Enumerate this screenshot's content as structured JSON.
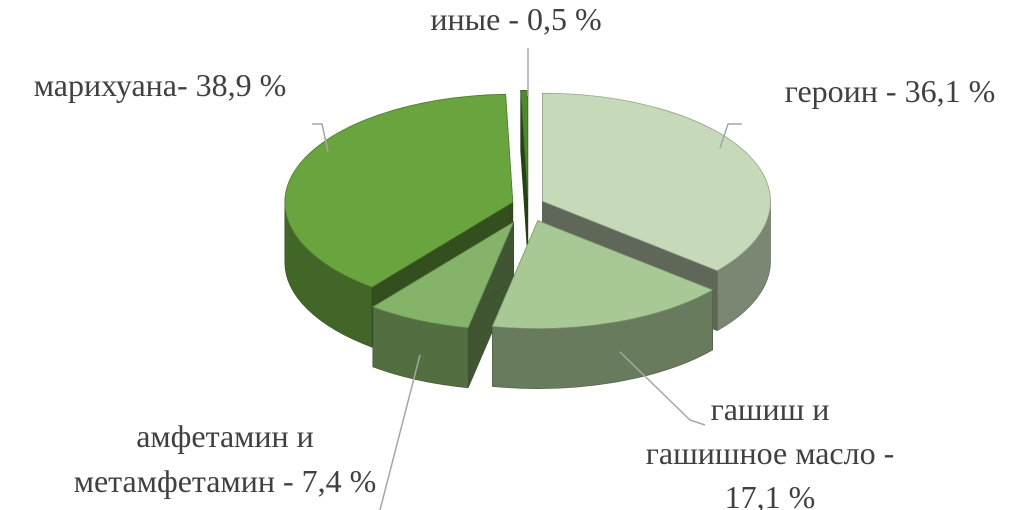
{
  "chart_data": {
    "type": "pie",
    "title": "",
    "three_d": true,
    "exploded": true,
    "slices": [
      {
        "name": "героин",
        "value": 36.1,
        "color": "#c6d9b8",
        "label_lines": [
          "героин - 36,1 %"
        ]
      },
      {
        "name": "гашиш и гашишное масло",
        "value": 17.1,
        "color": "#a8c896",
        "label_lines": [
          "гашиш и",
          "гашишное масло -",
          "17,1 %"
        ]
      },
      {
        "name": "амфетамин и метамфетамин",
        "value": 7.4,
        "color": "#86b36a",
        "label_lines": [
          "амфетамин и",
          "метамфетамин - 7,4 %"
        ]
      },
      {
        "name": "марихуана",
        "value": 38.9,
        "color": "#6aa43f",
        "label_lines": [
          "марихуана- 38,9 %"
        ]
      },
      {
        "name": "иные",
        "value": 0.5,
        "color": "#4e8a2c",
        "label_lines": [
          "иные - 0,5 %"
        ]
      }
    ]
  }
}
